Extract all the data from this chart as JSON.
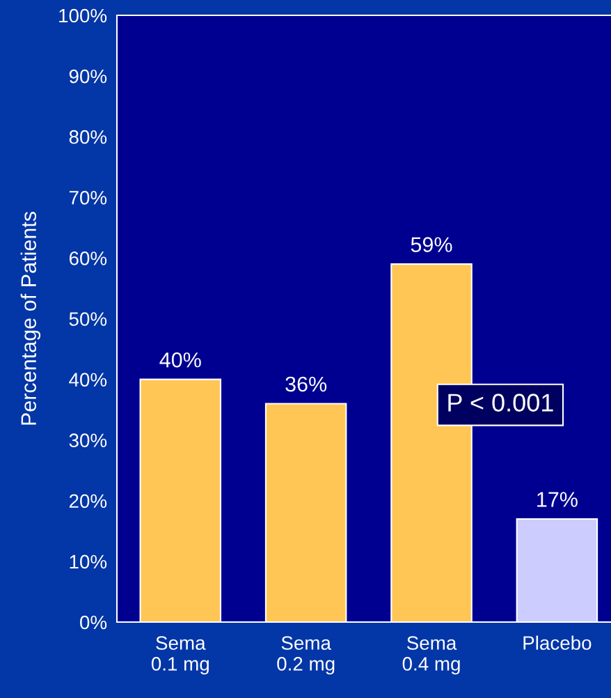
{
  "chart_data": {
    "type": "bar",
    "ylabel": "Percentage of Patients",
    "categories": [
      "Sema\n0.1 mg",
      "Sema\n0.2 mg",
      "Sema\n0.4 mg",
      "Placebo"
    ],
    "values": [
      40,
      36,
      59,
      17
    ],
    "colors": [
      "#ffc655",
      "#ffc655",
      "#ffc655",
      "#ccccff"
    ],
    "value_labels": [
      "40%",
      "36%",
      "59%",
      "17%"
    ],
    "ylim": [
      0,
      100
    ],
    "yticks": [
      {
        "value": 0,
        "label": "0%"
      },
      {
        "value": 10,
        "label": "10%"
      },
      {
        "value": 20,
        "label": "20%"
      },
      {
        "value": 30,
        "label": "30%"
      },
      {
        "value": 40,
        "label": "40%"
      },
      {
        "value": 50,
        "label": "50%"
      },
      {
        "value": 60,
        "label": "60%"
      },
      {
        "value": 70,
        "label": "70%"
      },
      {
        "value": 80,
        "label": "80%"
      },
      {
        "value": 90,
        "label": "90%"
      },
      {
        "value": 100,
        "label": "100%"
      }
    ],
    "annotations": [
      "P < 0.001"
    ],
    "grid": false,
    "legend": false
  }
}
